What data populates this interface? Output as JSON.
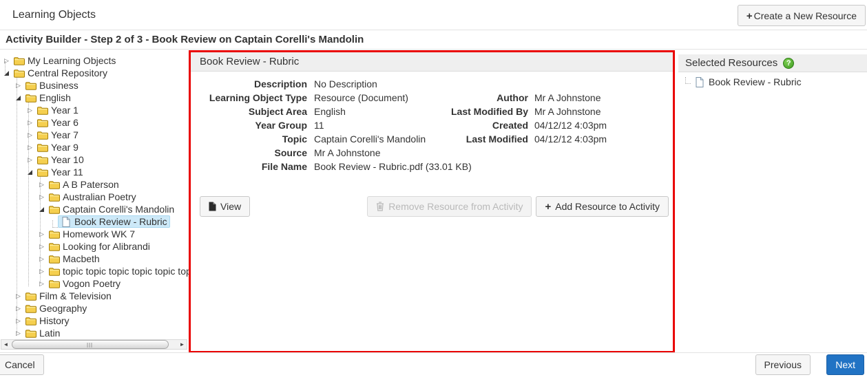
{
  "titlebar": {
    "title": "Learning Objects",
    "create_button_label": "Create a New Resource"
  },
  "stepbar": {
    "text": "Activity Builder - Step 2 of 3 - Book Review on Captain Corelli's Mandolin"
  },
  "tree": {
    "items": [
      {
        "label": "My Learning Objects",
        "level": 0,
        "state": "collapsed",
        "icon": "folder"
      },
      {
        "label": "Central Repository",
        "level": 0,
        "state": "expanded",
        "icon": "folder"
      },
      {
        "label": "Business",
        "level": 1,
        "state": "collapsed",
        "icon": "folder"
      },
      {
        "label": "English",
        "level": 1,
        "state": "expanded",
        "icon": "folder"
      },
      {
        "label": "Year 1",
        "level": 2,
        "state": "collapsed",
        "icon": "folder"
      },
      {
        "label": "Year 6",
        "level": 2,
        "state": "collapsed",
        "icon": "folder"
      },
      {
        "label": "Year 7",
        "level": 2,
        "state": "collapsed",
        "icon": "folder"
      },
      {
        "label": "Year 9",
        "level": 2,
        "state": "collapsed",
        "icon": "folder"
      },
      {
        "label": "Year 10",
        "level": 2,
        "state": "collapsed",
        "icon": "folder"
      },
      {
        "label": "Year 11",
        "level": 2,
        "state": "expanded",
        "icon": "folder"
      },
      {
        "label": "A B Paterson",
        "level": 3,
        "state": "collapsed",
        "icon": "folder"
      },
      {
        "label": "Australian Poetry",
        "level": 3,
        "state": "collapsed",
        "icon": "folder"
      },
      {
        "label": "Captain Corelli's Mandolin",
        "level": 3,
        "state": "expanded",
        "icon": "folder"
      },
      {
        "label": "Book Review - Rubric",
        "level": 4,
        "state": "leaf",
        "icon": "document",
        "selected": true
      },
      {
        "label": "Homework WK 7",
        "level": 3,
        "state": "collapsed",
        "icon": "folder"
      },
      {
        "label": "Looking for Alibrandi",
        "level": 3,
        "state": "collapsed",
        "icon": "folder"
      },
      {
        "label": "Macbeth",
        "level": 3,
        "state": "collapsed",
        "icon": "folder"
      },
      {
        "label": "topic topic topic topic topic top",
        "level": 3,
        "state": "collapsed",
        "icon": "folder"
      },
      {
        "label": "Vogon Poetry",
        "level": 3,
        "state": "collapsed",
        "icon": "folder"
      },
      {
        "label": "Film & Television",
        "level": 1,
        "state": "collapsed",
        "icon": "folder"
      },
      {
        "label": "Geography",
        "level": 1,
        "state": "collapsed",
        "icon": "folder"
      },
      {
        "label": "History",
        "level": 1,
        "state": "collapsed",
        "icon": "folder"
      },
      {
        "label": "Latin",
        "level": 1,
        "state": "collapsed",
        "icon": "folder"
      }
    ]
  },
  "details": {
    "title": "Book Review - Rubric",
    "left_fields": [
      {
        "label": "Description",
        "value": "No Description"
      },
      {
        "label": "Learning Object Type",
        "value": "Resource (Document)"
      },
      {
        "label": "Subject Area",
        "value": "English"
      },
      {
        "label": "Year Group",
        "value": "11"
      },
      {
        "label": "Topic",
        "value": "Captain Corelli's Mandolin"
      },
      {
        "label": "Source",
        "value": "Mr A Johnstone"
      },
      {
        "label": "File Name",
        "value": "Book Review - Rubric.pdf (33.01 KB)"
      }
    ],
    "right_fields": [
      {
        "label": "Author",
        "value": "Mr A Johnstone"
      },
      {
        "label": "Last Modified By",
        "value": "Mr A Johnstone"
      },
      {
        "label": "Created",
        "value": "04/12/12 4:03pm"
      },
      {
        "label": "Last Modified",
        "value": "04/12/12 4:03pm"
      }
    ],
    "view_button": "View",
    "remove_button": "Remove Resource from Activity",
    "add_button": "Add Resource to Activity"
  },
  "selected_resources": {
    "title": "Selected Resources",
    "items": [
      {
        "label": "Book Review - Rubric"
      }
    ]
  },
  "footer": {
    "cancel": "Cancel",
    "previous": "Previous",
    "next": "Next"
  },
  "colors": {
    "highlight_border_red": "#e90000",
    "primary_button_blue": "#2173c4",
    "tree_selection_blue": "#cde9f8",
    "help_icon_green": "#3f9a22",
    "header_bar_gray": "#efefef"
  }
}
